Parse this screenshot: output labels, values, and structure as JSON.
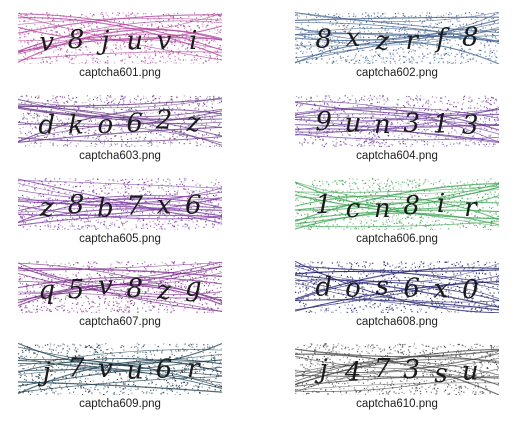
{
  "images": [
    {
      "filename": "captcha601.png",
      "text": "v 8 j u v i",
      "color": "#b0409a"
    },
    {
      "filename": "captcha602.png",
      "text": "8 x z r f 8",
      "color": "#3a5a88"
    },
    {
      "filename": "captcha603.png",
      "text": "d k o 6 2 z",
      "color": "#6a3a8a"
    },
    {
      "filename": "captcha604.png",
      "text": "9 u n 3 1 3",
      "color": "#6a3a9a"
    },
    {
      "filename": "captcha605.png",
      "text": "z 8 b 7 x 6",
      "color": "#7a3aa0"
    },
    {
      "filename": "captcha606.png",
      "text": "1 c n 8 i r",
      "color": "#3aa050"
    },
    {
      "filename": "captcha607.png",
      "text": "q 5 v 8 z g",
      "color": "#7a2a8a"
    },
    {
      "filename": "captcha608.png",
      "text": "d o s 6 x 0",
      "color": "#1a1a6a"
    },
    {
      "filename": "captcha609.png",
      "text": "j 7 v u 6 r",
      "color": "#1a3a4a"
    },
    {
      "filename": "captcha610.png",
      "text": "j 4 7 3 s u",
      "color": "#444444"
    }
  ]
}
